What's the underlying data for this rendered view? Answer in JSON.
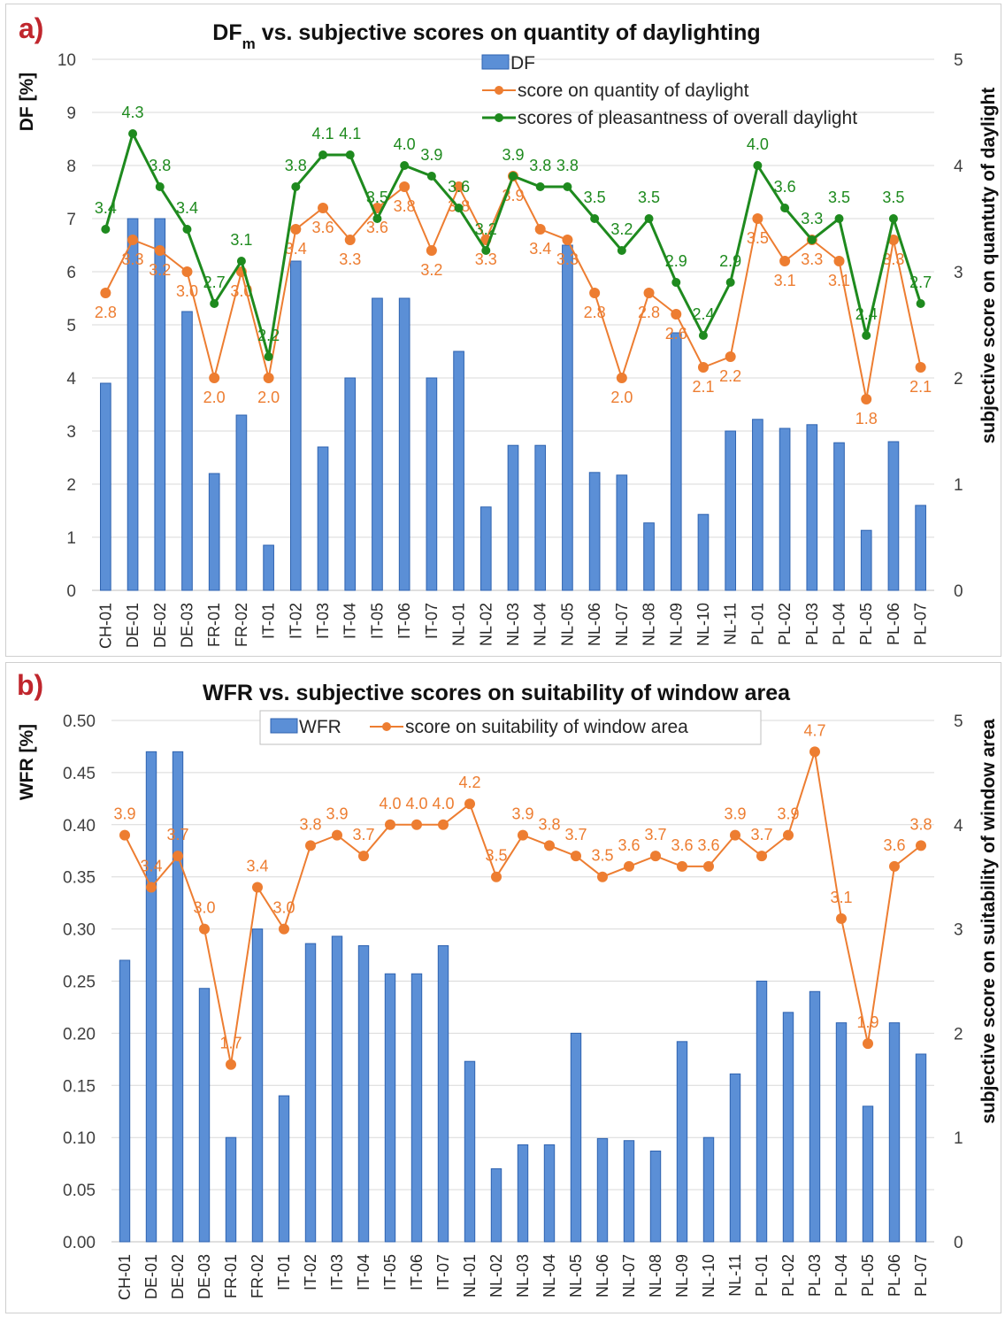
{
  "panels": {
    "a": {
      "label": "a)"
    },
    "b": {
      "label": "b)"
    }
  },
  "colors": {
    "bar": "#5b8fd6",
    "bar_edge": "#2f63b0",
    "orange": "#ed7d31",
    "green": "#1e8a1e",
    "panel_label": "#c0262d",
    "grid": "#d9d9d9"
  },
  "chart_data": [
    {
      "id": "a",
      "type": "bar+line",
      "title_main": "DF",
      "title_sub": "m",
      "title_rest": " vs. subjective scores on quantity of daylighting",
      "ylabel_left": "DF  [%]",
      "ylabel_right": "subjective score on quantuty of daylight",
      "ylim_left": [
        0,
        10
      ],
      "ylim_right": [
        0,
        5
      ],
      "left_ticks": [
        "0",
        "1",
        "2",
        "3",
        "4",
        "5",
        "6",
        "7",
        "8",
        "9",
        "10"
      ],
      "right_ticks": [
        "0",
        "1",
        "2",
        "3",
        "4",
        "5"
      ],
      "categories": [
        "CH-01",
        "DE-01",
        "DE-02",
        "DE-03",
        "FR-01",
        "FR-02",
        "IT-01",
        "IT-02",
        "IT-03",
        "IT-04",
        "IT-05",
        "IT-06",
        "IT-07",
        "NL-01",
        "NL-02",
        "NL-03",
        "NL-04",
        "NL-05",
        "NL-06",
        "NL-07",
        "NL-08",
        "NL-09",
        "NL-10",
        "NL-11",
        "PL-01",
        "PL-02",
        "PL-03",
        "PL-04",
        "PL-05",
        "PL-06",
        "PL-07"
      ],
      "legend_position": "top-center",
      "grid": true,
      "series": [
        {
          "name": "DF",
          "type": "bar",
          "axis": "left",
          "values": [
            3.9,
            7.0,
            7.0,
            5.25,
            2.2,
            3.3,
            0.85,
            6.2,
            2.7,
            4.0,
            5.5,
            5.5,
            4.0,
            4.5,
            1.57,
            2.73,
            2.73,
            6.5,
            2.22,
            2.17,
            1.27,
            4.85,
            1.43,
            3.0,
            3.22,
            3.05,
            3.12,
            2.78,
            1.13,
            2.8,
            1.6
          ]
        },
        {
          "name": "score on quantity of daylight",
          "type": "line",
          "axis": "right",
          "values": [
            2.8,
            3.3,
            3.2,
            3.0,
            2.0,
            3.0,
            2.0,
            3.4,
            3.6,
            3.3,
            3.6,
            3.8,
            3.2,
            3.8,
            3.3,
            3.9,
            3.4,
            3.3,
            2.8,
            2.0,
            2.8,
            2.6,
            2.1,
            2.2,
            3.5,
            3.1,
            3.3,
            3.1,
            1.8,
            3.3,
            2.1
          ],
          "labels": [
            "2.8",
            "3.3",
            "3.2",
            "3.0",
            "2.0",
            "3.0",
            "2.0",
            "3.4",
            "3.6",
            "3.3",
            "3.6",
            "3.8",
            "3.2",
            "3.8",
            "3.3",
            "3.9",
            "3.4",
            "3.3",
            "2.8",
            "2.0",
            "2.8",
            "2.6",
            "2.1",
            "2.2",
            "3.5",
            "3.1",
            "3.3",
            "3.1",
            "1.8",
            "3.3",
            "2.1"
          ]
        },
        {
          "name": "scores of pleasantness of overall daylight",
          "type": "line",
          "axis": "right",
          "values": [
            3.4,
            4.3,
            3.8,
            3.4,
            2.7,
            3.1,
            2.2,
            3.8,
            4.1,
            4.1,
            3.5,
            4.0,
            3.9,
            3.6,
            3.2,
            3.9,
            3.8,
            3.8,
            3.5,
            3.2,
            3.5,
            2.9,
            2.4,
            2.9,
            4.0,
            3.6,
            3.3,
            3.5,
            2.4,
            3.5,
            2.7
          ],
          "labels": [
            "3.4",
            "4.3",
            "3.8",
            "3.4",
            "2.7",
            "3.1",
            "2.2",
            "3.8",
            "4.1",
            "4.1",
            "3.5",
            "4.0",
            "3.9",
            "3.6",
            "3.2",
            "3.9",
            "3.8",
            "3.8",
            "3.5",
            "3.2",
            "3.5",
            "2.9",
            "2.4",
            "2.9",
            "4.0",
            "3.6",
            "3.3",
            "3.5",
            "2.4",
            "3.5",
            "2.7"
          ]
        }
      ]
    },
    {
      "id": "b",
      "type": "bar+line",
      "title_main": "WFR vs. subjective scores on suitability of window area",
      "title_sub": "",
      "title_rest": "",
      "ylabel_left": "WFR  [%]",
      "ylabel_right": "subjective score on suitability of window area",
      "ylim_left": [
        0,
        0.5
      ],
      "ylim_right": [
        0,
        5
      ],
      "left_ticks": [
        "0.00",
        "0.05",
        "0.10",
        "0.15",
        "0.20",
        "0.25",
        "0.30",
        "0.35",
        "0.40",
        "0.45",
        "0.50"
      ],
      "right_ticks": [
        "0",
        "1",
        "2",
        "3",
        "4",
        "5"
      ],
      "categories": [
        "CH-01",
        "DE-01",
        "DE-02",
        "DE-03",
        "FR-01",
        "FR-02",
        "IT-01",
        "IT-02",
        "IT-03",
        "IT-04",
        "IT-05",
        "IT-06",
        "IT-07",
        "NL-01",
        "NL-02",
        "NL-03",
        "NL-04",
        "NL-05",
        "NL-06",
        "NL-07",
        "NL-08",
        "NL-09",
        "NL-10",
        "NL-11",
        "PL-01",
        "PL-02",
        "PL-03",
        "PL-04",
        "PL-05",
        "PL-06",
        "PL-07"
      ],
      "legend_position": "top-center",
      "grid": true,
      "series": [
        {
          "name": "WFR",
          "type": "bar",
          "axis": "left",
          "values": [
            0.27,
            0.47,
            0.47,
            0.243,
            0.1,
            0.3,
            0.14,
            0.286,
            0.293,
            0.284,
            0.257,
            0.257,
            0.284,
            0.173,
            0.07,
            0.093,
            0.093,
            0.2,
            0.099,
            0.097,
            0.087,
            0.192,
            0.1,
            0.161,
            0.25,
            0.22,
            0.24,
            0.21,
            0.13,
            0.21,
            0.18
          ]
        },
        {
          "name": "score on suitability of window area",
          "type": "line",
          "axis": "right",
          "values": [
            3.9,
            3.4,
            3.7,
            3.0,
            1.7,
            3.4,
            3.0,
            3.8,
            3.9,
            3.7,
            4.0,
            4.0,
            4.0,
            4.2,
            3.5,
            3.9,
            3.8,
            3.7,
            3.5,
            3.6,
            3.7,
            3.6,
            3.6,
            3.9,
            3.7,
            3.9,
            4.7,
            3.1,
            1.9,
            3.6,
            3.8
          ],
          "labels": [
            "3.9",
            "3.4",
            "3.7",
            "3.0",
            "1.7",
            "3.4",
            "3.0",
            "3.8",
            "3.9",
            "3.7",
            "4.0",
            "4.0",
            "4.0",
            "4.2",
            "3.5",
            "3.9",
            "3.8",
            "3.7",
            "3.5",
            "3.6",
            "3.7",
            "3.6",
            "3.6",
            "3.9",
            "3.7",
            "3.9",
            "4.7",
            "3.1",
            "1.9",
            "3.6",
            "3.8"
          ]
        }
      ]
    }
  ]
}
